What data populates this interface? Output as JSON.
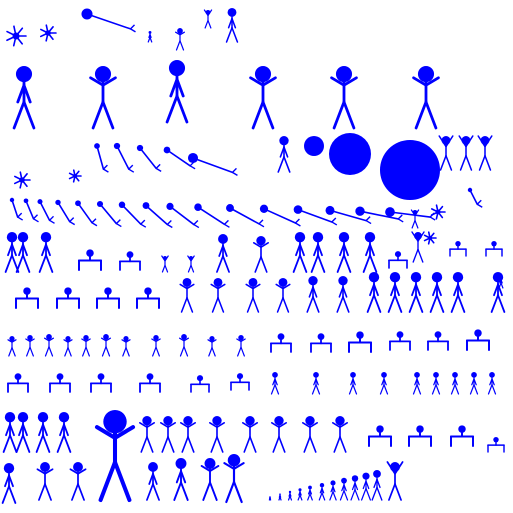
{
  "sheet": {
    "subject": "stick-figure-sprite-sheet",
    "figure_color": "#0000ff",
    "background_color": "#ffffff"
  }
}
